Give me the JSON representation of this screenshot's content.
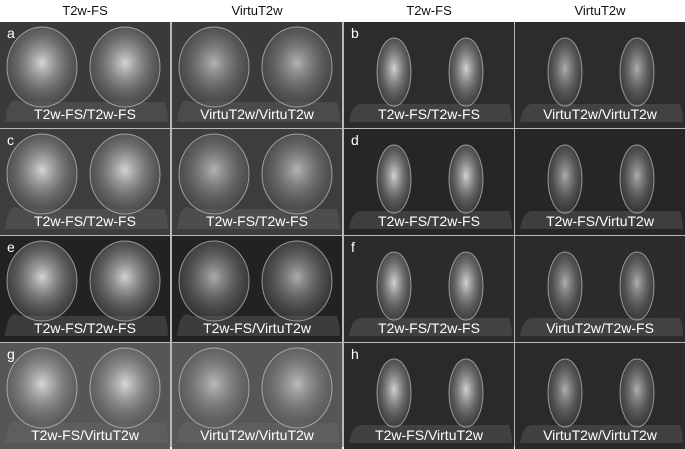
{
  "column_headers": [
    "T2w-FS",
    "VirtuT2w",
    "T2w-FS",
    "VirtuT2w"
  ],
  "panels": [
    {
      "letter": "a",
      "left_caption": "T2w-FS/T2w-FS",
      "right_caption": "VirtuT2w/VirtuT2w"
    },
    {
      "letter": "b",
      "left_caption": "T2w-FS/T2w-FS",
      "right_caption": "VirtuT2w/VirtuT2w"
    },
    {
      "letter": "c",
      "left_caption": "T2w-FS/T2w-FS",
      "right_caption": "T2w-FS/T2w-FS"
    },
    {
      "letter": "d",
      "left_caption": "T2w-FS/T2w-FS",
      "right_caption": "T2w-FS/VirtuT2w"
    },
    {
      "letter": "e",
      "left_caption": "T2w-FS/T2w-FS",
      "right_caption": "T2w-FS/VirtuT2w"
    },
    {
      "letter": "f",
      "left_caption": "T2w-FS/T2w-FS",
      "right_caption": "VirtuT2w/T2w-FS"
    },
    {
      "letter": "g",
      "left_caption": "T2w-FS/VirtuT2w",
      "right_caption": "VirtuT2w/VirtuT2w"
    },
    {
      "letter": "h",
      "left_caption": "T2w-FS/VirtuT2w",
      "right_caption": "VirtuT2w/VirtuT2w"
    }
  ]
}
